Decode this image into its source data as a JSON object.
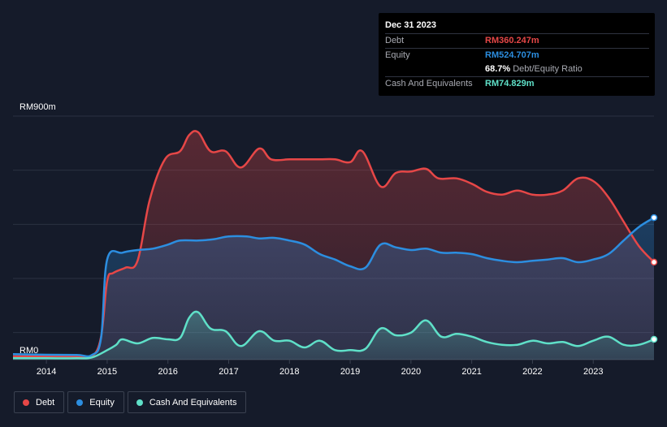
{
  "tooltip": {
    "date": "Dec 31 2023",
    "debt_label": "Debt",
    "debt_value": "RM360.247m",
    "equity_label": "Equity",
    "equity_value": "RM524.707m",
    "ratio_value": "68.7%",
    "ratio_label": "Debt/Equity Ratio",
    "cash_label": "Cash And Equivalents",
    "cash_value": "RM74.829m"
  },
  "legend": {
    "debt": "Debt",
    "equity": "Equity",
    "cash": "Cash And Equivalents"
  },
  "colors": {
    "background": "#151b2a",
    "debt": "#e64747",
    "equity": "#2c8ee0",
    "cash": "#5fe0c8"
  },
  "chart_data": {
    "type": "area",
    "title": "",
    "xlabel": "",
    "ylabel": "",
    "y_top_label": "RM900m",
    "y_bottom_label": "RM0",
    "ylim": [
      0,
      900
    ],
    "xlim": [
      2013.45,
      2024.0
    ],
    "grid": true,
    "x_tick_labels": [
      "2014",
      "2015",
      "2016",
      "2017",
      "2018",
      "2019",
      "2020",
      "2021",
      "2022",
      "2023"
    ],
    "x_tick_values": [
      2014,
      2015,
      2016,
      2017,
      2018,
      2019,
      2020,
      2021,
      2022,
      2023
    ],
    "series": [
      {
        "name": "Debt",
        "x": [
          2013.45,
          2014.0,
          2014.5,
          2014.75,
          2014.9,
          2015.0,
          2015.1,
          2015.3,
          2015.5,
          2015.7,
          2015.95,
          2016.2,
          2016.35,
          2016.5,
          2016.7,
          2016.95,
          2017.2,
          2017.5,
          2017.7,
          2018.0,
          2018.2,
          2018.5,
          2018.75,
          2019.0,
          2019.2,
          2019.5,
          2019.75,
          2020.0,
          2020.25,
          2020.45,
          2020.75,
          2021.0,
          2021.25,
          2021.5,
          2021.75,
          2022.0,
          2022.25,
          2022.5,
          2022.75,
          2023.0,
          2023.25,
          2023.5,
          2023.75,
          2024.0
        ],
        "values": [
          12,
          13,
          12,
          12,
          85,
          290,
          320,
          340,
          365,
          590,
          740,
          770,
          830,
          840,
          770,
          770,
          710,
          780,
          740,
          740,
          740,
          740,
          740,
          730,
          770,
          640,
          690,
          695,
          705,
          670,
          670,
          650,
          620,
          610,
          625,
          610,
          610,
          625,
          670,
          660,
          600,
          510,
          420,
          360.247
        ]
      },
      {
        "name": "Equity",
        "x": [
          2013.45,
          2014.0,
          2014.5,
          2014.75,
          2014.9,
          2015.0,
          2015.25,
          2015.5,
          2015.75,
          2016.0,
          2016.2,
          2016.5,
          2016.75,
          2017.0,
          2017.3,
          2017.5,
          2017.75,
          2018.0,
          2018.25,
          2018.5,
          2018.75,
          2019.0,
          2019.25,
          2019.5,
          2019.75,
          2020.0,
          2020.25,
          2020.5,
          2020.75,
          2021.0,
          2021.25,
          2021.5,
          2021.75,
          2022.0,
          2022.25,
          2022.5,
          2022.75,
          2023.0,
          2023.25,
          2023.5,
          2023.75,
          2024.0
        ],
        "values": [
          20,
          18,
          17,
          17,
          80,
          370,
          395,
          405,
          410,
          425,
          440,
          440,
          445,
          455,
          455,
          448,
          450,
          440,
          425,
          390,
          370,
          345,
          340,
          425,
          415,
          405,
          410,
          395,
          395,
          390,
          375,
          365,
          360,
          365,
          370,
          375,
          360,
          370,
          390,
          440,
          490,
          524.707
        ]
      },
      {
        "name": "Cash And Equivalents",
        "x": [
          2013.45,
          2014.0,
          2014.5,
          2014.75,
          2015.0,
          2015.15,
          2015.25,
          2015.5,
          2015.75,
          2016.0,
          2016.2,
          2016.35,
          2016.5,
          2016.7,
          2016.95,
          2017.2,
          2017.5,
          2017.75,
          2018.0,
          2018.25,
          2018.5,
          2018.75,
          2019.0,
          2019.25,
          2019.5,
          2019.75,
          2020.0,
          2020.25,
          2020.5,
          2020.75,
          2021.0,
          2021.25,
          2021.5,
          2021.75,
          2022.0,
          2022.25,
          2022.5,
          2022.75,
          2023.0,
          2023.25,
          2023.5,
          2023.75,
          2024.0
        ],
        "values": [
          5,
          5,
          5,
          8,
          35,
          55,
          75,
          60,
          80,
          75,
          80,
          155,
          175,
          115,
          105,
          50,
          105,
          70,
          70,
          45,
          70,
          35,
          35,
          40,
          115,
          90,
          100,
          145,
          85,
          95,
          85,
          65,
          55,
          55,
          70,
          60,
          65,
          50,
          70,
          85,
          55,
          55,
          74.829
        ]
      }
    ]
  }
}
